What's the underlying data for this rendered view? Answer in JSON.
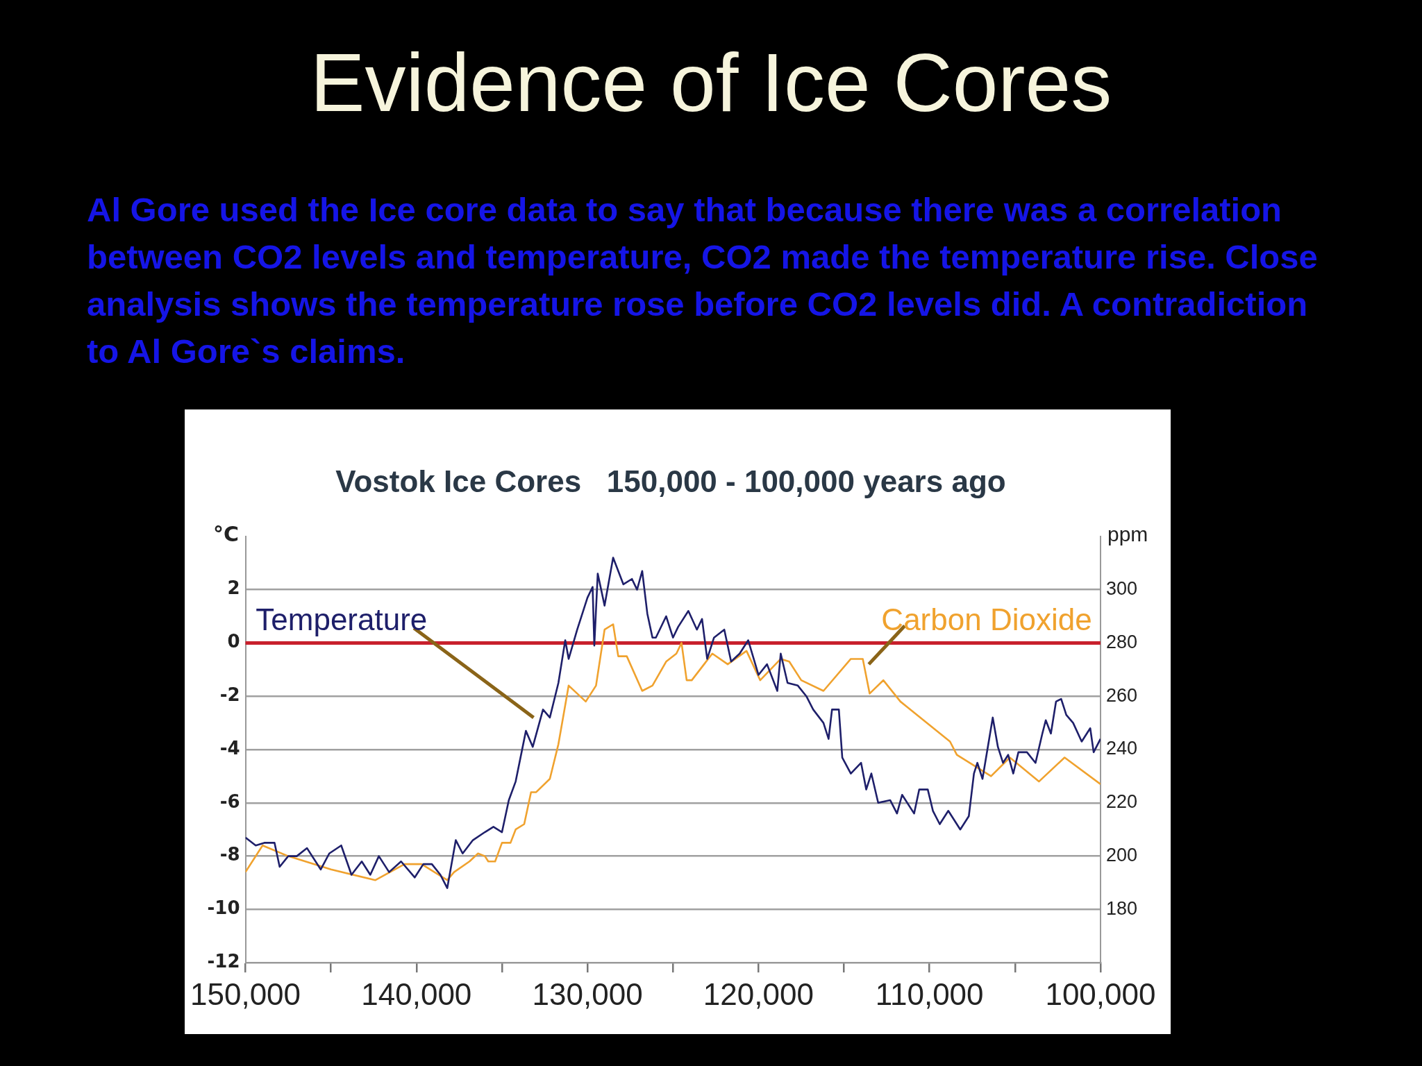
{
  "chart_data": {
    "type": "line",
    "title": "Evidence of Ice Cores",
    "subtitle": "Al Gore used the Ice core data to say that because there was a correlation between CO2 levels and temperature, CO2 made the temperature rise. Close analysis shows the temperature rose before CO2 levels did.  A contradiction to Al Gore`s claims.",
    "annotations": [
      "Vostok Ice Cores   150,000 - 100,000 years ago"
    ],
    "ylabel": "°C",
    "y2label": "ppm",
    "xlim": [
      150000,
      100000
    ],
    "xticks": [
      {
        "value": 150000,
        "label": "150,000"
      },
      {
        "value": 145000,
        "label": null
      },
      {
        "value": 140000,
        "label": "140,000"
      },
      {
        "value": 135000,
        "label": null
      },
      {
        "value": 130000,
        "label": "130,000"
      },
      {
        "value": 125000,
        "label": null
      },
      {
        "value": 120000,
        "label": "120,000"
      },
      {
        "value": 115000,
        "label": null
      },
      {
        "value": 110000,
        "label": "110,000"
      },
      {
        "value": 105000,
        "label": null
      },
      {
        "value": 100000,
        "label": "100,000"
      }
    ],
    "ylim": [
      -12,
      4
    ],
    "yticks": [
      -12,
      -10,
      -8,
      -6,
      -4,
      -2,
      0,
      2
    ],
    "y2lim": [
      160,
      320
    ],
    "y2ticks": [
      180,
      200,
      220,
      240,
      260,
      280,
      300
    ],
    "grid": "y",
    "legend": false,
    "marker": "none",
    "line_style": "solid",
    "ref_lines": [
      {
        "axis": "y",
        "value": 0,
        "color": "#c8202c"
      }
    ],
    "series": [
      {
        "name": "Temperature",
        "color": "#1e1f6a",
        "x": [
          150000,
          149400,
          148900,
          148300,
          148000,
          147500,
          147000,
          146400,
          145600,
          145100,
          144400,
          143800,
          143200,
          142700,
          142200,
          141600,
          140900,
          140100,
          139600,
          139100,
          138600,
          138200,
          137700,
          137300,
          136700,
          136000,
          135500,
          135000,
          134600,
          134200,
          133600,
          133200,
          132600,
          132200,
          131700,
          131300,
          131100,
          130600,
          130000,
          129700,
          129600,
          129400,
          129000,
          128500,
          127900,
          127400,
          127100,
          126800,
          126500,
          126200,
          126000,
          125400,
          125000,
          124700,
          124100,
          123600,
          123300,
          123000,
          122600,
          122000,
          121600,
          121100,
          120600,
          120000,
          119500,
          118900,
          118700,
          118300,
          117700,
          117200,
          116800,
          116200,
          115900,
          115700,
          115300,
          115100,
          114600,
          114000,
          113700,
          113400,
          113000,
          112300,
          111900,
          111600,
          110900,
          110600,
          110100,
          109800,
          109400,
          108900,
          108200,
          107700,
          107400,
          107200,
          106900,
          106300,
          106000,
          105700,
          105400,
          105100,
          104800,
          104300,
          103800,
          103400,
          103200,
          102900,
          102600,
          102300,
          102000,
          101600,
          101100,
          100600,
          100400,
          100000
        ],
        "values": [
          -7.3,
          -7.6,
          -7.5,
          -7.5,
          -8.4,
          -8.0,
          -8.0,
          -7.7,
          -8.5,
          -7.9,
          -7.6,
          -8.7,
          -8.2,
          -8.7,
          -8.0,
          -8.6,
          -8.2,
          -8.8,
          -8.3,
          -8.3,
          -8.7,
          -9.2,
          -7.4,
          -7.9,
          -7.4,
          -7.1,
          -6.9,
          -7.1,
          -5.9,
          -5.2,
          -3.3,
          -3.9,
          -2.5,
          -2.8,
          -1.5,
          0.1,
          -0.6,
          0.5,
          1.7,
          2.1,
          -0.1,
          2.6,
          1.4,
          3.2,
          2.2,
          2.4,
          2.0,
          2.7,
          1.1,
          0.2,
          0.2,
          1.0,
          0.2,
          0.6,
          1.2,
          0.5,
          0.9,
          -0.6,
          0.2,
          0.5,
          -0.7,
          -0.4,
          0.1,
          -1.2,
          -0.8,
          -1.8,
          -0.4,
          -1.5,
          -1.6,
          -2.0,
          -2.5,
          -3.0,
          -3.6,
          -2.5,
          -2.5,
          -4.3,
          -4.9,
          -4.5,
          -5.5,
          -4.9,
          -6.0,
          -5.9,
          -6.4,
          -5.7,
          -6.4,
          -5.5,
          -5.5,
          -6.3,
          -6.8,
          -6.3,
          -7.0,
          -6.5,
          -4.9,
          -4.5,
          -5.1,
          -2.8,
          -3.9,
          -4.5,
          -4.2,
          -4.9,
          -4.1,
          -4.1,
          -4.5,
          -3.4,
          -2.9,
          -3.4,
          -2.2,
          -2.1,
          -2.7,
          -3.0,
          -3.7,
          -3.2,
          -4.1,
          -3.6
        ]
      },
      {
        "name": "Carbon Dioxide",
        "color": "#f0a22e",
        "axis": "y2",
        "x": [
          150000,
          149000,
          147500,
          145000,
          142400,
          140700,
          139700,
          138200,
          137800,
          136900,
          136400,
          136000,
          135800,
          135400,
          135000,
          134500,
          134200,
          133700,
          133300,
          133000,
          132200,
          131700,
          131100,
          130600,
          130100,
          129500,
          129000,
          128500,
          128200,
          127700,
          126800,
          126200,
          125400,
          124800,
          124500,
          124200,
          123900,
          122700,
          121800,
          120700,
          119900,
          118700,
          118200,
          117500,
          116200,
          114600,
          113900,
          113500,
          112700,
          111700,
          108800,
          108400,
          106400,
          105300,
          103600,
          102100,
          100000
        ],
        "values": [
          194,
          204,
          200,
          195,
          191,
          197,
          197,
          191,
          194,
          198,
          201,
          200,
          198,
          198,
          205,
          205,
          210,
          212,
          224,
          224,
          229,
          242,
          264,
          261,
          258,
          264,
          285,
          287,
          275,
          275,
          262,
          264,
          273,
          276,
          280,
          266,
          266,
          276,
          272,
          277,
          266,
          274,
          273,
          266,
          262,
          274,
          274,
          261,
          266,
          258,
          243,
          238,
          230,
          237,
          228,
          237,
          227
        ]
      }
    ]
  }
}
